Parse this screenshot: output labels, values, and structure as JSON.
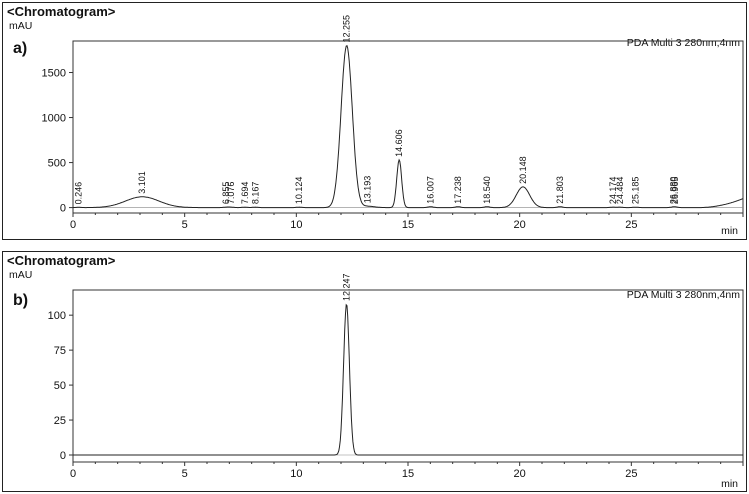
{
  "chart_data": [
    {
      "type": "line",
      "panel_label": "a)",
      "title": "<Chromatogram>",
      "ylabel": "mAU",
      "xlabel": "min",
      "legend": "PDA Multi 3 280nm,4nm",
      "legend_position": "top-right",
      "xlim": [
        0,
        30
      ],
      "ylim": [
        -60,
        1850
      ],
      "x_ticks": [
        0,
        5,
        10,
        15,
        20,
        25
      ],
      "y_ticks": [
        0,
        500,
        1000,
        1500
      ],
      "grid": false,
      "peaks": [
        {
          "rt": 0.246,
          "height": 3,
          "label": "0.246"
        },
        {
          "rt": 3.101,
          "height": 120,
          "label": "3.101"
        },
        {
          "rt": 6.855,
          "height": 5,
          "label": "6.855"
        },
        {
          "rt": 7.076,
          "height": 5,
          "label": "7.076"
        },
        {
          "rt": 7.694,
          "height": 5,
          "label": "7.694"
        },
        {
          "rt": 8.167,
          "height": 5,
          "label": "8.167"
        },
        {
          "rt": 10.124,
          "height": 5,
          "label": "10.124"
        },
        {
          "rt": 12.255,
          "height": 1800,
          "label": "12.255"
        },
        {
          "rt": 13.193,
          "height": 15,
          "label": "13.193"
        },
        {
          "rt": 14.606,
          "height": 530,
          "label": "14.606"
        },
        {
          "rt": 16.007,
          "height": 10,
          "label": "16.007"
        },
        {
          "rt": 17.238,
          "height": 10,
          "label": "17.238"
        },
        {
          "rt": 18.54,
          "height": 10,
          "label": "18.540"
        },
        {
          "rt": 20.148,
          "height": 230,
          "label": "20.148"
        },
        {
          "rt": 21.803,
          "height": 10,
          "label": "21.803"
        },
        {
          "rt": 24.174,
          "height": 5,
          "label": "24.174"
        },
        {
          "rt": 24.484,
          "height": 5,
          "label": "24.484"
        },
        {
          "rt": 25.185,
          "height": 5,
          "label": "25.185"
        },
        {
          "rt": 26.88,
          "height": 5,
          "label": "26.880"
        },
        {
          "rt": 26.965,
          "height": 5,
          "label": "26.965"
        }
      ]
    },
    {
      "type": "line",
      "panel_label": "b)",
      "title": "<Chromatogram>",
      "ylabel": "mAU",
      "xlabel": "min",
      "legend": "PDA Multi 3 280nm,4nm",
      "legend_position": "top-right",
      "xlim": [
        0,
        30
      ],
      "ylim": [
        -5,
        118
      ],
      "x_ticks": [
        0,
        5,
        10,
        15,
        20,
        25
      ],
      "y_ticks": [
        0,
        25,
        50,
        75,
        100
      ],
      "grid": false,
      "peaks": [
        {
          "rt": 12.247,
          "height": 108,
          "label": "12.247"
        }
      ]
    }
  ]
}
